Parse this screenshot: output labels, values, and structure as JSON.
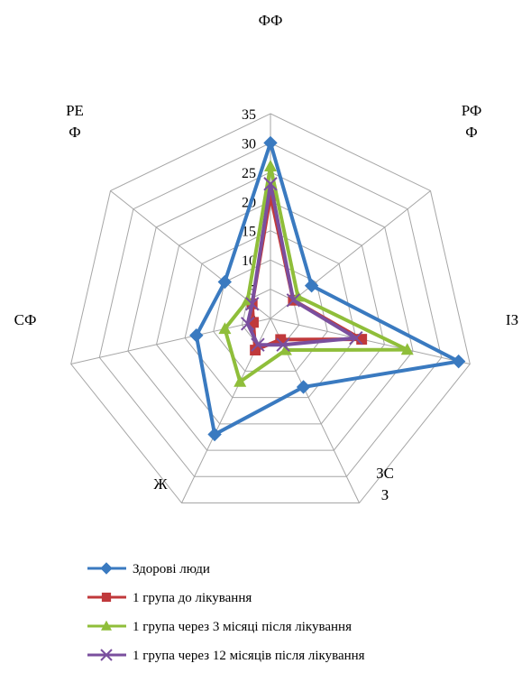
{
  "chart_data": {
    "type": "radar",
    "categories": [
      {
        "lines": [
          "ФФ"
        ]
      },
      {
        "lines": [
          "РФ",
          "Ф"
        ]
      },
      {
        "lines": [
          "ІЗ"
        ]
      },
      {
        "lines": [
          "ЗС",
          "З"
        ]
      },
      {
        "lines": [
          "Ж"
        ]
      },
      {
        "lines": [
          "СФ"
        ]
      },
      {
        "lines": [
          "РЕ",
          "Ф"
        ]
      }
    ],
    "rlim": [
      0,
      35
    ],
    "ticks": [
      "0",
      "5",
      "10",
      "15",
      "20",
      "25",
      "30",
      "35"
    ],
    "tick_values": [
      0,
      5,
      10,
      15,
      20,
      25,
      30,
      35
    ],
    "grid": true,
    "legend_position": "bottom",
    "series": [
      {
        "name": "Здорові люди",
        "color": "#3a7ac0",
        "marker": "diamond",
        "values": [
          30,
          9,
          33,
          13,
          22,
          13,
          10
        ]
      },
      {
        "name": "1 група до лікування",
        "color": "#c0393b",
        "marker": "square",
        "values": [
          21,
          5,
          16,
          4,
          6,
          3,
          4
        ]
      },
      {
        "name": "1 група через 3 місяці після лікування",
        "color": "#8fbe3a",
        "marker": "triangle",
        "values": [
          26,
          6,
          24,
          6,
          12,
          8,
          5
        ]
      },
      {
        "name": "1 група через 12 місяців після лікування",
        "color": "#7a4f9e",
        "marker": "x",
        "values": [
          23,
          5,
          15,
          5,
          5,
          4,
          4
        ]
      }
    ]
  }
}
